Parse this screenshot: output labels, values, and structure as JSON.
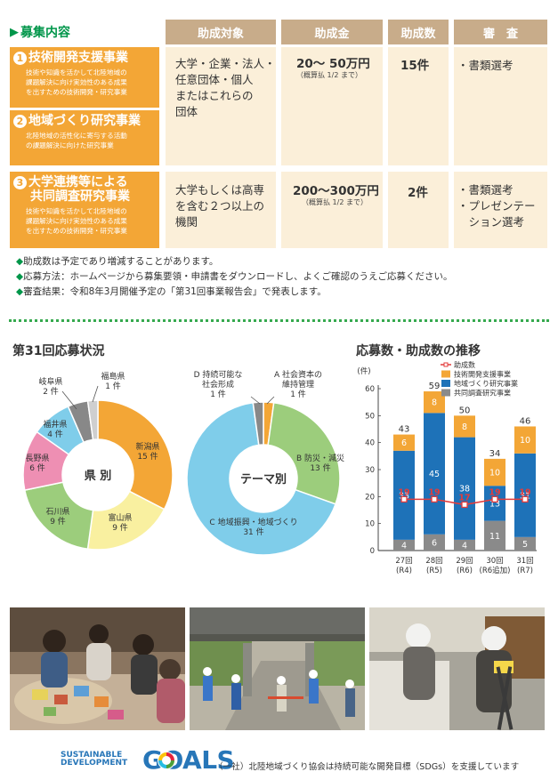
{
  "table": {
    "heading": "募集内容",
    "columns": [
      "助成対象",
      "助成金",
      "助成数",
      "審　査"
    ],
    "rows": [
      {
        "num": "1",
        "title": "技術開発支援事業",
        "desc_lines": [
          "技術や知識を活かして北陸地域の",
          "課題解決に向け実効性のある成果",
          "を出すための技術開発・研究事業"
        ],
        "num2": "2",
        "title2": "地域づくり研究事業",
        "desc2_lines": [
          "北陸地域の活性化に寄与する活動",
          "の課題解決に向けた研究事業"
        ],
        "target_lines": [
          "大学・企業・法人・",
          "任意団体・個人",
          "またはこれらの",
          "団体"
        ],
        "amount": "20～ 50万円",
        "amount_note": "（概算払 1/2 まで）",
        "count": "15件",
        "review_lines": [
          "・書類選考"
        ]
      },
      {
        "num": "3",
        "title_lines": [
          "大学連携等による",
          "共同調査研究事業"
        ],
        "desc_lines": [
          "技術や知識を活かして北陸地域の",
          "課題解決に向け実効性のある成果",
          "を出すための技術開発・研究事業"
        ],
        "target_lines": [
          "大学もしくは高専",
          "を含む２つ以上の",
          "機関"
        ],
        "amount": "200～300万円",
        "amount_note": "（概算払 1/2 まで）",
        "count": "2件",
        "review_lines": [
          "・書類選考",
          "・プレゼンテー",
          "　ション選考"
        ]
      }
    ]
  },
  "notes": [
    "助成数は予定であり増減することがあります。",
    "応募方法：ホームページから募集要領・申請書をダウンロードし、よくご確認のうえご応募ください。",
    "審査結果：令和8年3月開催予定の「第31回事業報告会」で発表します。"
  ],
  "section_applications": "第31回応募状況",
  "section_trend": "応募数・助成数の推移",
  "colors": {
    "orange": "#f3a636",
    "cream": "#fbefd9",
    "header_tan": "#c8ac8a",
    "green": "#00964a",
    "blue": "#1e72b8",
    "gray": "#8a8a8a",
    "red": "#e33b3b"
  },
  "chart_data": [
    {
      "type": "pie",
      "title": "県 別",
      "categories": [
        "新潟県",
        "富山県",
        "石川県",
        "長野県",
        "福井県",
        "岐阜県",
        "福島県"
      ],
      "values": [
        15,
        9,
        9,
        6,
        4,
        2,
        1
      ],
      "value_labels": [
        "15 件",
        "9 件",
        "9 件",
        "6 件",
        "4 件",
        "2 件",
        "1 件"
      ],
      "colors": [
        "#f3a636",
        "#f9f0a0",
        "#9ccd7c",
        "#ee8fb3",
        "#7fcdea",
        "#888888",
        "#cfcfcf"
      ]
    },
    {
      "type": "pie",
      "title": "テーマ別",
      "categories": [
        "A 社会資本の維持管理",
        "B 防災・減災",
        "C 地域振興・地域づくり",
        "D 持続可能な社会形成"
      ],
      "category_lines": [
        [
          "A 社会資本の",
          "維持管理"
        ],
        [
          "B 防災・減災"
        ],
        [
          "C 地域振興・地域づくり"
        ],
        [
          "D 持続可能な",
          "社会形成"
        ]
      ],
      "values": [
        1,
        13,
        31,
        1
      ],
      "value_labels": [
        "1 件",
        "13 件",
        "31 件",
        "1 件"
      ],
      "colors": [
        "#f3a636",
        "#9ccd7c",
        "#7fcdea",
        "#888888"
      ]
    },
    {
      "type": "bar",
      "stacked": true,
      "ylabel": "(件)",
      "ylim": [
        0,
        60
      ],
      "yticks": [
        0,
        10,
        20,
        30,
        40,
        50,
        60
      ],
      "categories": [
        "27回",
        "28回",
        "29回",
        "30回",
        "31回"
      ],
      "category_sub": [
        "(R4)",
        "(R5)",
        "(R6)",
        "(R6追加)",
        "(R7)"
      ],
      "totals": [
        43,
        59,
        50,
        34,
        46
      ],
      "series": [
        {
          "name": "共同調査研究事業",
          "values": [
            4,
            6,
            4,
            11,
            5
          ],
          "color": "#8a8a8a"
        },
        {
          "name": "地域づくり研究事業",
          "values": [
            33,
            45,
            38,
            13,
            31
          ],
          "color": "#1e72b8"
        },
        {
          "name": "技術開発支援事業",
          "values": [
            6,
            8,
            8,
            10,
            10
          ],
          "color": "#f3a636"
        }
      ],
      "line": {
        "name": "助成数",
        "values": [
          19,
          19,
          17,
          19,
          19
        ],
        "color": "#e33b3b"
      },
      "legend_order": [
        "助成数",
        "技術開発支援事業",
        "地域づくり研究事業",
        "共同調査研究事業"
      ]
    }
  ],
  "footer": {
    "sdg_line1": "SUSTAINABLE",
    "sdg_line2": "DEVELOPMENT",
    "sdg_goals": "GOALS",
    "text": "（一社）北陸地域づくり協会は持続可能な開発目標（SDGs）を支援しています"
  }
}
